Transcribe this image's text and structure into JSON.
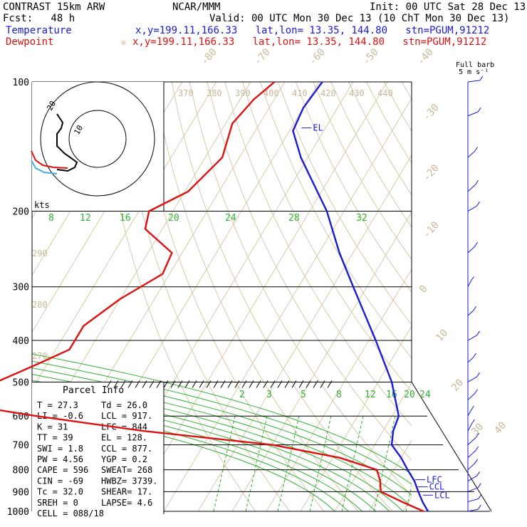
{
  "header": {
    "model": "CONTRAST 15km ARW",
    "org": "NCAR/MMM",
    "init": "Init: 00 UTC Sat 28 Dec 13",
    "fcst": "Fcst:   48 h",
    "valid": "Valid: 00 UTC Mon 30 Dec 13 (10 ChT Mon 30 Dec 13)",
    "temp_label": "Temperature",
    "temp_info": "x,y=199.11,166.33   lat,lon= 13.35, 144.80   stn=PGUM,91212",
    "dew_label": "Dewpoint",
    "dew_info": "x,y=199.11,166.33   lat,lon= 13.35, 144.80   stn=PGUM,91212",
    "star_glyph": "☆",
    "barb_title": "Full barb",
    "barb_units": "5 m s⁻¹"
  },
  "chart_data": {
    "type": "line",
    "title": "Skew-T sounding",
    "y_scale": "log-pressure (hPa)",
    "pressure_levels": [
      100,
      200,
      300,
      400,
      500,
      600,
      700,
      800,
      900,
      1000
    ],
    "dry_adiabat_labels": [
      "370",
      "380",
      "390",
      "400",
      "410",
      "420",
      "430",
      "440"
    ],
    "isotherm_labels": [
      "-80",
      "-70",
      "-60",
      "-50",
      "-40",
      "-30",
      "-20",
      "-10",
      "0",
      "10",
      "20",
      "30",
      "40"
    ],
    "mixing_ratio_labels_upper": [
      "8",
      "12",
      "16",
      "20",
      "24",
      "28",
      "32"
    ],
    "mixing_ratio_labels_lower": [
      "2",
      "3",
      "5",
      "8",
      "12",
      "16",
      "20",
      "24"
    ],
    "theta_labels_left": [
      "290",
      "280",
      "270"
    ],
    "series": [
      {
        "name": "Temperature",
        "color": "#1a1ad6",
        "points": [
          [
            100,
            -79
          ],
          [
            115,
            -80
          ],
          [
            130,
            -79
          ],
          [
            150,
            -72
          ],
          [
            200,
            -55
          ],
          [
            250,
            -44
          ],
          [
            300,
            -34
          ],
          [
            400,
            -18
          ],
          [
            500,
            -6
          ],
          [
            600,
            2
          ],
          [
            650,
            3
          ],
          [
            700,
            5
          ],
          [
            750,
            10
          ],
          [
            800,
            14
          ],
          [
            850,
            18
          ],
          [
            900,
            21
          ],
          [
            950,
            24
          ],
          [
            1000,
            27.3
          ]
        ]
      },
      {
        "name": "Dewpoint",
        "color": "#e01010",
        "points": [
          [
            100,
            -93
          ],
          [
            110,
            -96
          ],
          [
            125,
            -98
          ],
          [
            150,
            -95
          ],
          [
            180,
            -99
          ],
          [
            200,
            -107
          ],
          [
            220,
            -105
          ],
          [
            250,
            -93
          ],
          [
            280,
            -92
          ],
          [
            320,
            -100
          ],
          [
            370,
            -106
          ],
          [
            420,
            -106
          ],
          [
            450,
            -112
          ],
          [
            500,
            -150
          ],
          [
            580,
            -170
          ],
          [
            600,
            -104
          ],
          [
            650,
            -70
          ],
          [
            700,
            -30
          ],
          [
            750,
            -8
          ],
          [
            800,
            5
          ],
          [
            850,
            8
          ],
          [
            900,
            10
          ],
          [
            950,
            18
          ],
          [
            1000,
            26
          ]
        ]
      }
    ],
    "annotations": [
      "EL",
      "LFC",
      "CCL",
      "LCL"
    ],
    "hodograph": {
      "rings_label": "kts",
      "ring_labels": [
        "20",
        "10"
      ]
    },
    "parcel_info": {
      "title": "Parcel Info",
      "rows": [
        [
          "T  =    27.3",
          "Td =   26.0"
        ],
        [
          "LI =    -0.6",
          "LCL =  917."
        ],
        [
          "K  =      31",
          "LFC =  844"
        ],
        [
          "TT =      39",
          "EL  =  128."
        ],
        [
          "SWI =    1.8",
          "CCL =  877."
        ],
        [
          "PW =    4.56",
          "YGP =   0.2"
        ],
        [
          "CAPE =   596",
          "SWEAT=  268"
        ],
        [
          "CIN =    -69",
          "HWBZ= 3739."
        ],
        [
          "Tc =    32.0",
          "SHEAR=  17."
        ],
        [
          "SREH =     0",
          "LAPSE=  4.6"
        ],
        [
          "CELL =  088/18",
          ""
        ]
      ]
    },
    "wind_profile": [
      [
        100,
        5,
        200
      ],
      [
        120,
        8,
        230
      ],
      [
        150,
        12,
        250
      ],
      [
        180,
        14,
        250
      ],
      [
        200,
        10,
        240
      ],
      [
        250,
        12,
        250
      ],
      [
        300,
        10,
        260
      ],
      [
        350,
        8,
        250
      ],
      [
        400,
        10,
        240
      ],
      [
        450,
        8,
        250
      ],
      [
        500,
        10,
        240
      ],
      [
        550,
        12,
        250
      ],
      [
        600,
        10,
        260
      ],
      [
        650,
        14,
        260
      ],
      [
        700,
        16,
        250
      ],
      [
        750,
        14,
        250
      ],
      [
        800,
        12,
        250
      ],
      [
        850,
        10,
        240
      ],
      [
        900,
        8,
        230
      ],
      [
        950,
        6,
        220
      ],
      [
        1000,
        4,
        210
      ]
    ]
  }
}
